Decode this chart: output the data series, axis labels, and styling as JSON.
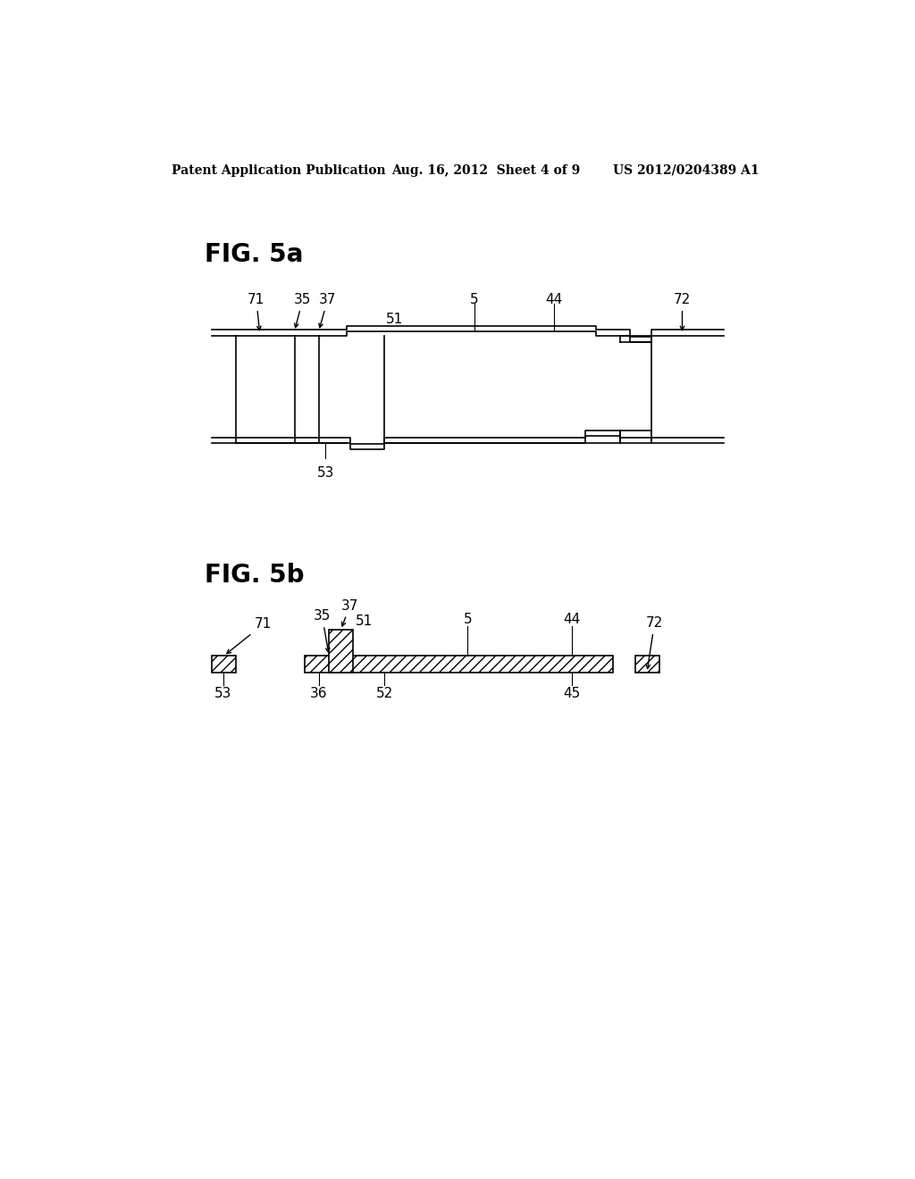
{
  "bg_color": "#ffffff",
  "header_left": "Patent Application Publication",
  "header_mid": "Aug. 16, 2012  Sheet 4 of 9",
  "header_right": "US 2012/0204389 A1",
  "fig5a_title": "FIG. 5a",
  "fig5b_title": "FIG. 5b",
  "line_color": "#000000"
}
